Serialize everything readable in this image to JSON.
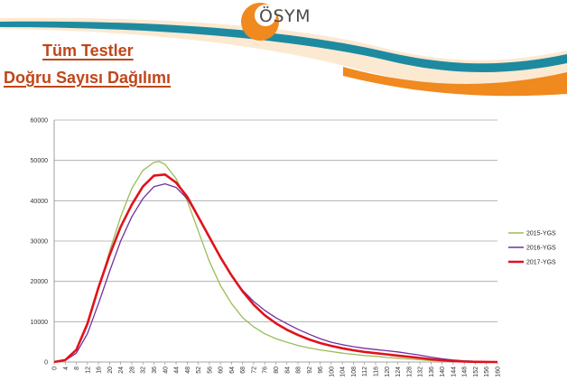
{
  "header": {
    "logo_text": "ÖSYM",
    "title_line1": "Tüm Testler",
    "title_line2": "Doğru Sayısı Dağılımı"
  },
  "colors": {
    "orange": "#f0891e",
    "teal": "#1e8aa0",
    "title": "#c0461a"
  },
  "chart_data": {
    "type": "line",
    "title": "",
    "xlabel": "",
    "ylabel": "",
    "xlim": [
      0,
      160
    ],
    "ylim": [
      0,
      60000
    ],
    "grid": true,
    "legend_position": "right",
    "x_ticks": [
      0,
      4,
      8,
      12,
      16,
      20,
      24,
      28,
      32,
      36,
      40,
      44,
      48,
      52,
      56,
      60,
      64,
      68,
      72,
      76,
      80,
      84,
      88,
      92,
      96,
      100,
      104,
      108,
      112,
      116,
      120,
      124,
      128,
      132,
      136,
      140,
      144,
      148,
      152,
      156,
      160
    ],
    "y_ticks": [
      0,
      10000,
      20000,
      30000,
      40000,
      50000,
      60000
    ],
    "series": [
      {
        "name": "2015-YGS",
        "color": "#9bbb59",
        "points": [
          [
            0,
            0
          ],
          [
            4,
            600
          ],
          [
            8,
            3000
          ],
          [
            12,
            9000
          ],
          [
            16,
            18000
          ],
          [
            20,
            27500
          ],
          [
            24,
            36000
          ],
          [
            28,
            43000
          ],
          [
            32,
            47500
          ],
          [
            36,
            49500
          ],
          [
            38,
            49700
          ],
          [
            40,
            49000
          ],
          [
            44,
            45500
          ],
          [
            48,
            40000
          ],
          [
            52,
            32500
          ],
          [
            56,
            25000
          ],
          [
            60,
            19000
          ],
          [
            64,
            14500
          ],
          [
            68,
            11000
          ],
          [
            72,
            8700
          ],
          [
            76,
            7000
          ],
          [
            80,
            5800
          ],
          [
            84,
            4900
          ],
          [
            88,
            4100
          ],
          [
            92,
            3500
          ],
          [
            96,
            3000
          ],
          [
            100,
            2600
          ],
          [
            104,
            2200
          ],
          [
            108,
            1900
          ],
          [
            112,
            1600
          ],
          [
            116,
            1400
          ],
          [
            120,
            1150
          ],
          [
            124,
            950
          ],
          [
            128,
            750
          ],
          [
            132,
            550
          ],
          [
            136,
            380
          ],
          [
            140,
            230
          ],
          [
            144,
            130
          ],
          [
            148,
            70
          ],
          [
            152,
            30
          ],
          [
            156,
            10
          ],
          [
            160,
            0
          ]
        ]
      },
      {
        "name": "2016-YGS",
        "color": "#7030a0",
        "points": [
          [
            0,
            0
          ],
          [
            4,
            400
          ],
          [
            8,
            2200
          ],
          [
            12,
            7000
          ],
          [
            16,
            14500
          ],
          [
            20,
            22500
          ],
          [
            24,
            30000
          ],
          [
            28,
            36000
          ],
          [
            32,
            40500
          ],
          [
            36,
            43500
          ],
          [
            40,
            44200
          ],
          [
            44,
            43300
          ],
          [
            48,
            40500
          ],
          [
            52,
            36000
          ],
          [
            56,
            31000
          ],
          [
            60,
            26000
          ],
          [
            64,
            21500
          ],
          [
            68,
            17800
          ],
          [
            72,
            15000
          ],
          [
            76,
            12800
          ],
          [
            80,
            11000
          ],
          [
            84,
            9500
          ],
          [
            88,
            8100
          ],
          [
            92,
            6900
          ],
          [
            96,
            5800
          ],
          [
            100,
            4900
          ],
          [
            104,
            4300
          ],
          [
            108,
            3800
          ],
          [
            112,
            3400
          ],
          [
            116,
            3100
          ],
          [
            120,
            2800
          ],
          [
            124,
            2500
          ],
          [
            128,
            2100
          ],
          [
            132,
            1700
          ],
          [
            136,
            1200
          ],
          [
            140,
            800
          ],
          [
            144,
            500
          ],
          [
            148,
            300
          ],
          [
            152,
            150
          ],
          [
            156,
            60
          ],
          [
            160,
            0
          ]
        ]
      },
      {
        "name": "2017-YGS",
        "color": "#e0121b",
        "points": [
          [
            0,
            0
          ],
          [
            4,
            500
          ],
          [
            8,
            3000
          ],
          [
            12,
            9500
          ],
          [
            16,
            18500
          ],
          [
            20,
            26500
          ],
          [
            24,
            33500
          ],
          [
            28,
            39000
          ],
          [
            32,
            43500
          ],
          [
            36,
            46200
          ],
          [
            40,
            46500
          ],
          [
            44,
            44500
          ],
          [
            48,
            41000
          ],
          [
            52,
            36000
          ],
          [
            56,
            31000
          ],
          [
            60,
            26000
          ],
          [
            64,
            21500
          ],
          [
            68,
            17500
          ],
          [
            72,
            14200
          ],
          [
            76,
            11600
          ],
          [
            80,
            9600
          ],
          [
            84,
            8000
          ],
          [
            88,
            6700
          ],
          [
            92,
            5600
          ],
          [
            96,
            4700
          ],
          [
            100,
            4000
          ],
          [
            104,
            3400
          ],
          [
            108,
            2900
          ],
          [
            112,
            2500
          ],
          [
            116,
            2200
          ],
          [
            120,
            1900
          ],
          [
            124,
            1600
          ],
          [
            128,
            1300
          ],
          [
            132,
            1000
          ],
          [
            136,
            700
          ],
          [
            140,
            450
          ],
          [
            144,
            250
          ],
          [
            148,
            120
          ],
          [
            152,
            50
          ],
          [
            156,
            20
          ],
          [
            160,
            0
          ]
        ]
      }
    ]
  }
}
